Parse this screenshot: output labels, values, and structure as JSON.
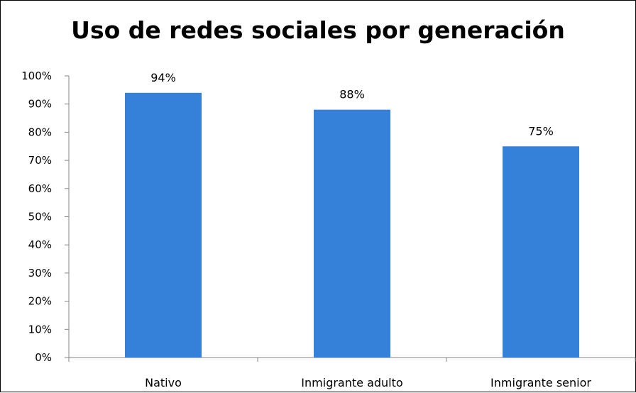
{
  "chart_data": {
    "type": "bar",
    "title": "Uso de redes sociales por generación",
    "categories": [
      "Nativo",
      "Inmigrante adulto",
      "Inmigrante senior"
    ],
    "values": [
      94,
      88,
      75
    ],
    "data_labels": [
      "94%",
      "88%",
      "75%"
    ],
    "y_ticks": [
      "0%",
      "10%",
      "20%",
      "30%",
      "40%",
      "50%",
      "60%",
      "70%",
      "80%",
      "90%",
      "100%"
    ],
    "ylim": [
      0,
      100
    ],
    "xlabel": "",
    "ylabel": "",
    "grid": false,
    "legend": "none",
    "bar_color": "#3580D8"
  }
}
